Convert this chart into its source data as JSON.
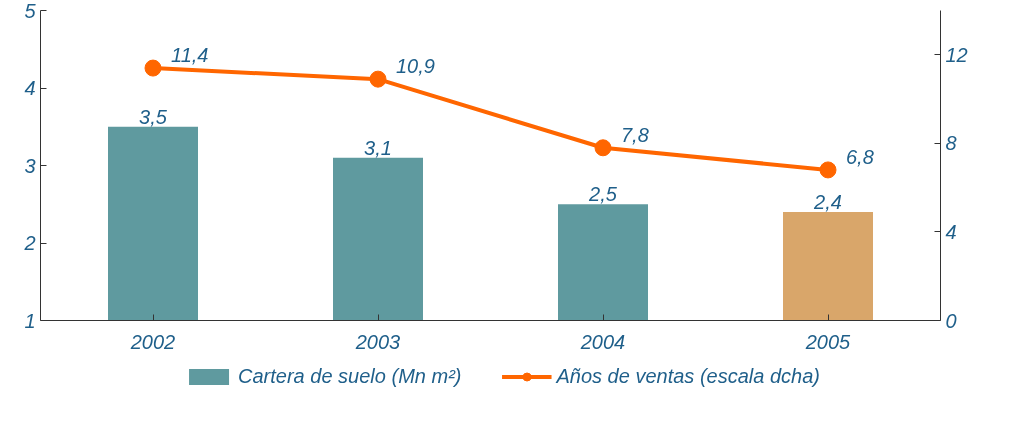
{
  "chart_data": {
    "type": "bar",
    "categories": [
      "2002",
      "2003",
      "2004",
      "2005"
    ],
    "ylim": [
      1,
      5
    ],
    "yticks": [
      1,
      2,
      3,
      4,
      5
    ],
    "y2lim": [
      0,
      14
    ],
    "y2ticks": [
      0,
      4,
      8,
      12
    ],
    "grid": false,
    "legend": "bottom",
    "series": [
      {
        "name": "Cartera de suelo (Mn m²)",
        "color": "#5f9a9f",
        "colors": [
          "#5f9a9f",
          "#5f9a9f",
          "#5f9a9f",
          "#d9a66a"
        ],
        "values": [
          3.5,
          3.1,
          2.5,
          2.4
        ],
        "value_labels": [
          "3,5",
          "3,1",
          "2,5",
          "2,4"
        ]
      },
      {
        "name": "Años de ventas (escala dcha)",
        "type": "line",
        "axis": "y2",
        "color": "#ff6600",
        "marker": "circle",
        "values": [
          11.4,
          10.9,
          7.8,
          6.8
        ],
        "value_labels": [
          "11,4",
          "10,9",
          "7,8",
          "6,8"
        ]
      }
    ]
  }
}
